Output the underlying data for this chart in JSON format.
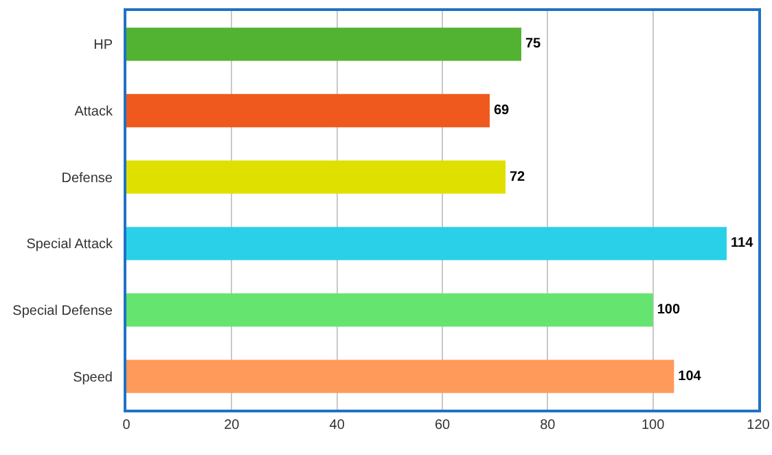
{
  "chart_data": {
    "type": "bar",
    "orientation": "horizontal",
    "categories": [
      "HP",
      "Attack",
      "Defense",
      "Special Attack",
      "Special Defense",
      "Speed"
    ],
    "values": [
      75,
      69,
      72,
      114,
      100,
      104
    ],
    "colors": [
      "#52b232",
      "#f0591e",
      "#e0e000",
      "#2ad0e8",
      "#66e470",
      "#ff9a5a"
    ],
    "xlim": [
      0,
      120
    ],
    "xticks": [
      0,
      20,
      40,
      60,
      80,
      100,
      120
    ],
    "grid": "x",
    "data_labels": true
  }
}
